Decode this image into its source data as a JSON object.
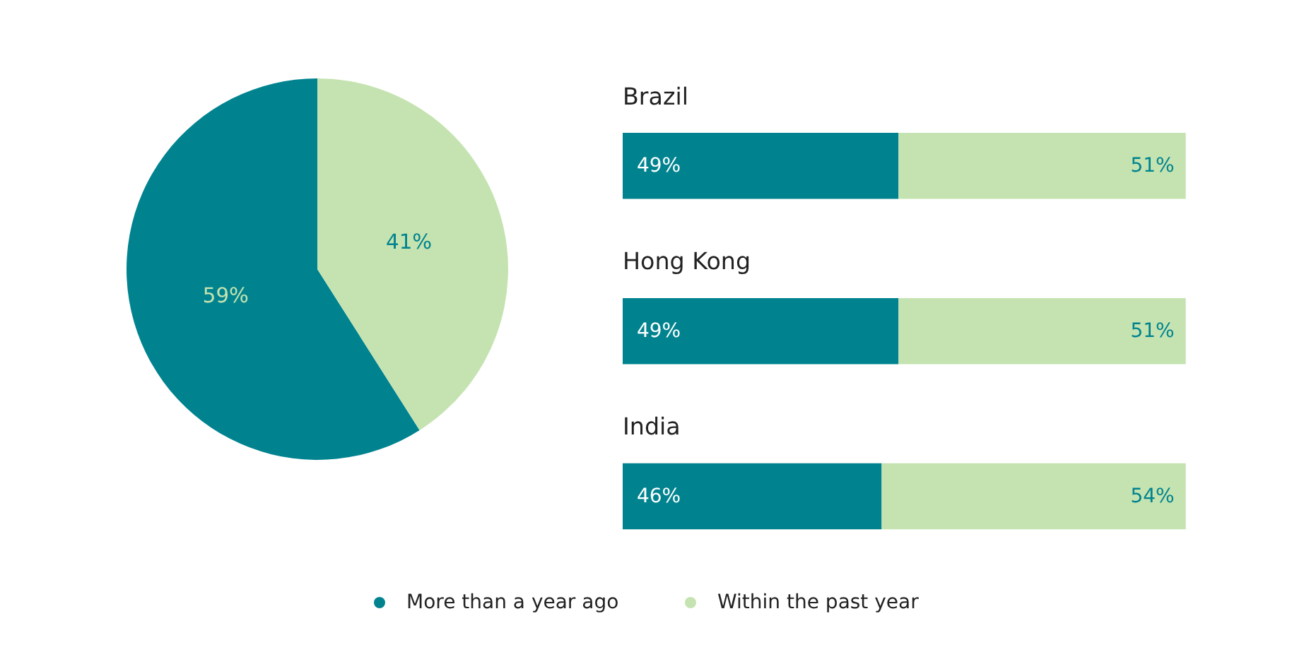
{
  "chart_data": [
    {
      "type": "pie",
      "categories": [
        null,
        null
      ],
      "values": [
        59,
        41
      ],
      "colors": [
        "#00838f",
        "#c5e3b0"
      ],
      "value_labels": [
        "59%",
        "41%"
      ]
    },
    {
      "type": "bar",
      "orientation": "horizontal",
      "stacked": true,
      "legend": "bottom",
      "categories": [
        "Brazil",
        "Hong Kong",
        "India"
      ],
      "series": [
        {
          "name": "More than a year ago",
          "color": "#00838f",
          "values": [
            49,
            49,
            46
          ],
          "value_labels": [
            "49%",
            "49%",
            "46%"
          ]
        },
        {
          "name": "Within the past year",
          "color": "#c5e3b0",
          "values": [
            51,
            51,
            54
          ],
          "value_labels": [
            "51%",
            "51%",
            "54%"
          ]
        }
      ]
    }
  ]
}
